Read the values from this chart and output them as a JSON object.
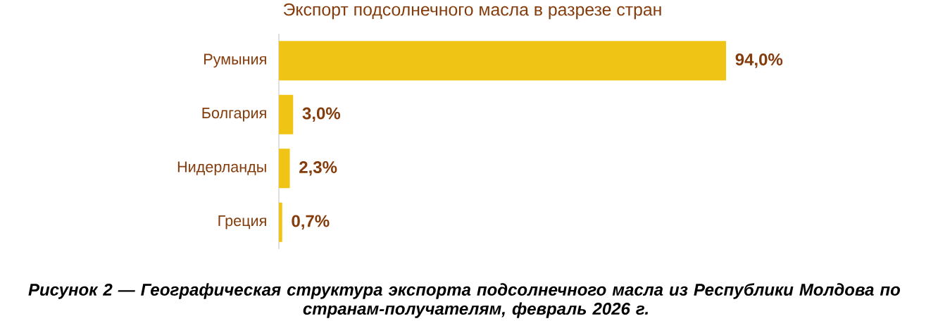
{
  "chart_data": {
    "type": "bar",
    "orientation": "horizontal",
    "title": "Экспорт подсолнечного масла в разрезе стран",
    "categories": [
      "Румыния",
      "Болгария",
      "Нидерланды",
      "Греция"
    ],
    "values": [
      94.0,
      3.0,
      2.3,
      0.7
    ],
    "value_labels": [
      "94,0%",
      "3,0%",
      "2,3%",
      "0,7%"
    ],
    "color": "#f0c415",
    "annotations": [
      "Рисунок 2 — Географическая структура экспорта подсолнечного масла из Республики Молдова по странам-получателям, февраль 2026 г."
    ]
  }
}
